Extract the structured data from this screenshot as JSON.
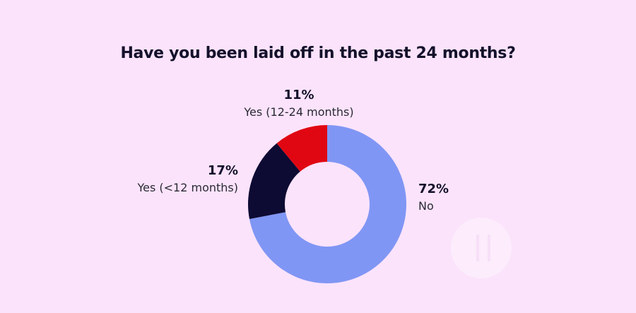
{
  "chart_data": {
    "type": "pie",
    "title": "Have you been laid off in the past 24 months?",
    "donut": true,
    "slices": [
      {
        "label": "No",
        "value": 72,
        "display": "72%",
        "color": "#8096f4",
        "label_side": "right"
      },
      {
        "label": "Yes (<12 months)",
        "value": 17,
        "display": "17%",
        "color": "#0d0a33",
        "label_side": "left"
      },
      {
        "label": "Yes (12-24 months)",
        "value": 11,
        "display": "11%",
        "color": "#e00712",
        "label_side": "top"
      }
    ]
  }
}
